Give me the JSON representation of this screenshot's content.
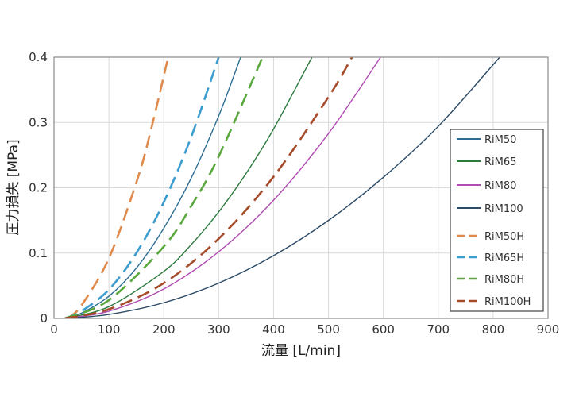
{
  "chart_data": {
    "type": "line",
    "title": "",
    "xlabel": "流量 [L/min]",
    "ylabel": "圧力損失 [MPa]",
    "xlim": [
      0,
      900
    ],
    "ylim": [
      0,
      0.4
    ],
    "xticks": [
      "0",
      "100",
      "200",
      "300",
      "400",
      "500",
      "600",
      "700",
      "800",
      "900"
    ],
    "yticks": [
      "0",
      "0.1",
      "0.2",
      "0.3",
      "0.4"
    ],
    "grid": true,
    "legend_position": "right",
    "series": [
      {
        "name": "RiM50",
        "color": "#2e6d93",
        "dash": "solid",
        "x": [
          20,
          50,
          100,
          150,
          200,
          250,
          300,
          340
        ],
        "y": [
          0.0,
          0.008,
          0.034,
          0.077,
          0.138,
          0.215,
          0.31,
          0.4
        ]
      },
      {
        "name": "RiM65",
        "color": "#2c7a3e",
        "dash": "solid",
        "x": [
          20,
          100,
          200,
          250,
          300,
          350,
          400,
          470
        ],
        "y": [
          0.0,
          0.018,
          0.072,
          0.113,
          0.163,
          0.222,
          0.29,
          0.4
        ]
      },
      {
        "name": "RiM80",
        "color": "#b04bb3",
        "dash": "solid",
        "x": [
          20,
          100,
          200,
          300,
          400,
          500,
          595
        ],
        "y": [
          0.0,
          0.011,
          0.045,
          0.102,
          0.181,
          0.283,
          0.4
        ]
      },
      {
        "name": "RiM100",
        "color": "#2b4a66",
        "dash": "solid",
        "x": [
          20,
          100,
          200,
          300,
          400,
          500,
          600,
          700,
          812
        ],
        "y": [
          0.0,
          0.006,
          0.024,
          0.054,
          0.096,
          0.15,
          0.216,
          0.294,
          0.4
        ]
      },
      {
        "name": "RiM50H",
        "color": "#e08a4c",
        "dash": "dashed",
        "x": [
          25,
          50,
          100,
          150,
          175,
          208
        ],
        "y": [
          0.0,
          0.02,
          0.092,
          0.208,
          0.283,
          0.4
        ]
      },
      {
        "name": "RiM65H",
        "color": "#3b9ccf",
        "dash": "dashed",
        "x": [
          20,
          50,
          100,
          150,
          200,
          250,
          300
        ],
        "y": [
          0.0,
          0.011,
          0.044,
          0.1,
          0.178,
          0.278,
          0.4
        ]
      },
      {
        "name": "RiM80H",
        "color": "#5aa83d",
        "dash": "dashed",
        "x": [
          20,
          100,
          200,
          250,
          300,
          380
        ],
        "y": [
          0.0,
          0.028,
          0.11,
          0.172,
          0.248,
          0.4
        ]
      },
      {
        "name": "RiM100H",
        "color": "#a64b2a",
        "dash": "dashed",
        "x": [
          20,
          100,
          200,
          300,
          400,
          500,
          543
        ],
        "y": [
          0.0,
          0.014,
          0.054,
          0.122,
          0.217,
          0.339,
          0.4
        ]
      }
    ]
  }
}
